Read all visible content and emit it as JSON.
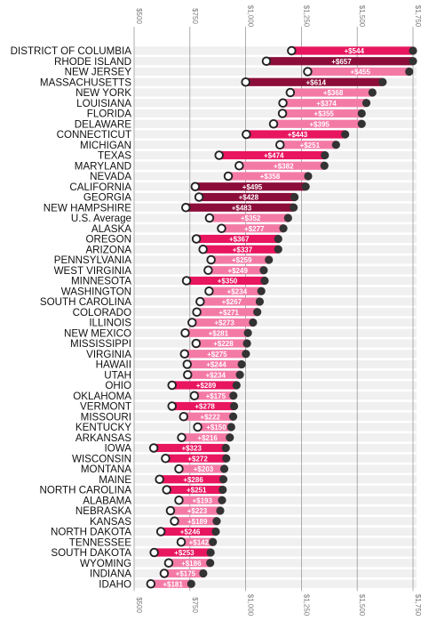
{
  "chart_data": {
    "type": "dumbbell",
    "x_axis": {
      "min": 500,
      "max": 1750,
      "ticks": [
        {
          "value": 500,
          "label": "$500"
        },
        {
          "value": 750,
          "label": "$750"
        },
        {
          "value": 1000,
          "label": "$1,000"
        },
        {
          "value": 1250,
          "label": "$1,250"
        },
        {
          "value": 1500,
          "label": "$1,500"
        },
        {
          "value": 1750,
          "label": "$1,750"
        }
      ]
    },
    "colors": {
      "high": "#8c0d3a",
      "medium": "#e8155f",
      "low": "#f47aa6",
      "stripe": "#f0f0f0",
      "endpoint": "#333333",
      "start_ring": "#222222"
    },
    "rows": [
      {
        "state": "DISTRICT OF COLUMBIA",
        "start": 1206,
        "end": 1750,
        "diff": "+$544",
        "tier": "medium"
      },
      {
        "state": "RHODE ISLAND",
        "start": 1093,
        "end": 1750,
        "diff": "+$657",
        "tier": "high"
      },
      {
        "state": "NEW JERSEY",
        "start": 1278,
        "end": 1733,
        "diff": "+$455",
        "tier": "low"
      },
      {
        "state": "MASSACHUSETTS",
        "start": 1000,
        "end": 1614,
        "diff": "+$614",
        "tier": "high"
      },
      {
        "state": "NEW YORK",
        "start": 1200,
        "end": 1568,
        "diff": "+$368",
        "tier": "low"
      },
      {
        "state": "LOUISIANA",
        "start": 1167,
        "end": 1541,
        "diff": "+$374",
        "tier": "low"
      },
      {
        "state": "FLORIDA",
        "start": 1165,
        "end": 1520,
        "diff": "+$355",
        "tier": "low"
      },
      {
        "state": "DELAWARE",
        "start": 1125,
        "end": 1520,
        "diff": "+$395",
        "tier": "low"
      },
      {
        "state": "CONNECTICUT",
        "start": 1003,
        "end": 1446,
        "diff": "+$443",
        "tier": "medium"
      },
      {
        "state": "MICHIGAN",
        "start": 1154,
        "end": 1405,
        "diff": "+$251",
        "tier": "low"
      },
      {
        "state": "TEXAS",
        "start": 881,
        "end": 1355,
        "diff": "+$474",
        "tier": "medium"
      },
      {
        "state": "MARYLAND",
        "start": 971,
        "end": 1353,
        "diff": "+$382",
        "tier": "low"
      },
      {
        "state": "NEVADA",
        "start": 922,
        "end": 1280,
        "diff": "+$358",
        "tier": "low"
      },
      {
        "state": "CALIFORNIA",
        "start": 774,
        "end": 1269,
        "diff": "+$495",
        "tier": "high"
      },
      {
        "state": "GEORGIA",
        "start": 791,
        "end": 1219,
        "diff": "+$428",
        "tier": "high"
      },
      {
        "state": "NEW HAMPSHIRE",
        "start": 732,
        "end": 1215,
        "diff": "+$483",
        "tier": "high"
      },
      {
        "state": "U.S. Average",
        "start": 838,
        "end": 1190,
        "diff": "+$352",
        "tier": "low"
      },
      {
        "state": "ALASKA",
        "start": 892,
        "end": 1169,
        "diff": "+$277",
        "tier": "low"
      },
      {
        "state": "OREGON",
        "start": 779,
        "end": 1146,
        "diff": "+$367",
        "tier": "medium"
      },
      {
        "state": "ARIZONA",
        "start": 809,
        "end": 1146,
        "diff": "+$337",
        "tier": "medium"
      },
      {
        "state": "PENNSYLVANIA",
        "start": 845,
        "end": 1104,
        "diff": "+$259",
        "tier": "low"
      },
      {
        "state": "WEST VIRGINIA",
        "start": 832,
        "end": 1081,
        "diff": "+$249",
        "tier": "low"
      },
      {
        "state": "MINNESOTA",
        "start": 735,
        "end": 1085,
        "diff": "+$350",
        "tier": "medium"
      },
      {
        "state": "WASHINGTON",
        "start": 836,
        "end": 1070,
        "diff": "+$234",
        "tier": "low"
      },
      {
        "state": "SOUTH CAROLINA",
        "start": 796,
        "end": 1063,
        "diff": "+$267",
        "tier": "low"
      },
      {
        "state": "COLORADO",
        "start": 781,
        "end": 1052,
        "diff": "+$271",
        "tier": "low"
      },
      {
        "state": "ILLINOIS",
        "start": 760,
        "end": 1033,
        "diff": "+$273",
        "tier": "low"
      },
      {
        "state": "NEW MEXICO",
        "start": 729,
        "end": 1010,
        "diff": "+$281",
        "tier": "low"
      },
      {
        "state": "MISSISSIPPI",
        "start": 778,
        "end": 1006,
        "diff": "+$228",
        "tier": "low"
      },
      {
        "state": "VIRGINIA",
        "start": 726,
        "end": 1001,
        "diff": "+$275",
        "tier": "low"
      },
      {
        "state": "HAWAII",
        "start": 738,
        "end": 982,
        "diff": "+$244",
        "tier": "low"
      },
      {
        "state": "UTAH",
        "start": 740,
        "end": 974,
        "diff": "+$234",
        "tier": "low"
      },
      {
        "state": "OHIO",
        "start": 670,
        "end": 959,
        "diff": "+$289",
        "tier": "medium"
      },
      {
        "state": "OKLAHOMA",
        "start": 770,
        "end": 945,
        "diff": "+$175",
        "tier": "low"
      },
      {
        "state": "VERMONT",
        "start": 670,
        "end": 948,
        "diff": "+$278",
        "tier": "medium"
      },
      {
        "state": "MISSOURI",
        "start": 722,
        "end": 944,
        "diff": "+$222",
        "tier": "low"
      },
      {
        "state": "KENTUCKY",
        "start": 785,
        "end": 935,
        "diff": "+$150",
        "tier": "low"
      },
      {
        "state": "ARKANSAS",
        "start": 713,
        "end": 929,
        "diff": "+$216",
        "tier": "low"
      },
      {
        "state": "IOWA",
        "start": 588,
        "end": 911,
        "diff": "+$323",
        "tier": "medium"
      },
      {
        "state": "WISCONSIN",
        "start": 641,
        "end": 913,
        "diff": "+$272",
        "tier": "medium"
      },
      {
        "state": "MONTANA",
        "start": 701,
        "end": 904,
        "diff": "+$203",
        "tier": "low"
      },
      {
        "state": "MAINE",
        "start": 614,
        "end": 900,
        "diff": "+$286",
        "tier": "medium"
      },
      {
        "state": "NORTH CAROLINA",
        "start": 646,
        "end": 897,
        "diff": "+$251",
        "tier": "medium"
      },
      {
        "state": "ALABAMA",
        "start": 701,
        "end": 894,
        "diff": "+$193",
        "tier": "low"
      },
      {
        "state": "NEBRASKA",
        "start": 663,
        "end": 886,
        "diff": "+$223",
        "tier": "low"
      },
      {
        "state": "KANSAS",
        "start": 681,
        "end": 870,
        "diff": "+$189",
        "tier": "low"
      },
      {
        "state": "NORTH DAKOTA",
        "start": 620,
        "end": 866,
        "diff": "+$246",
        "tier": "medium"
      },
      {
        "state": "TENNESSEE",
        "start": 711,
        "end": 853,
        "diff": "+$142",
        "tier": "low"
      },
      {
        "state": "SOUTH DAKOTA",
        "start": 590,
        "end": 843,
        "diff": "+$253",
        "tier": "medium"
      },
      {
        "state": "WYOMING",
        "start": 655,
        "end": 841,
        "diff": "+$186",
        "tier": "low"
      },
      {
        "state": "INDIANA",
        "start": 635,
        "end": 810,
        "diff": "+$175",
        "tier": "low"
      },
      {
        "state": "IDAHO",
        "start": 575,
        "end": 756,
        "diff": "+$181",
        "tier": "low"
      }
    ]
  }
}
